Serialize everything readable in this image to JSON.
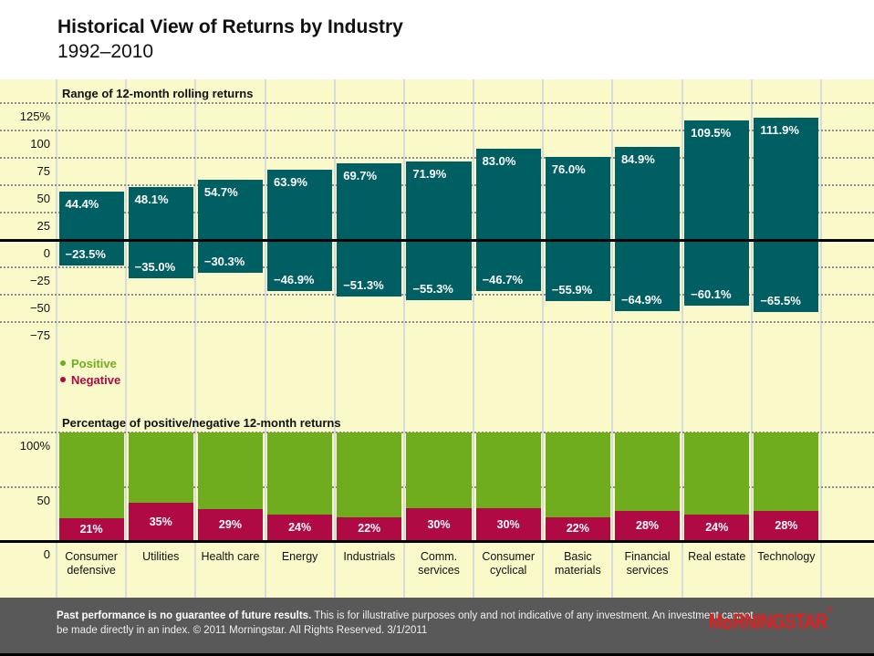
{
  "header": {
    "title": "Historical View of Returns by Industry",
    "subtitle": "1992–2010"
  },
  "legend": {
    "positive": "Positive",
    "negative": "Negative"
  },
  "chart_data": [
    {
      "type": "bar",
      "subtype": "floating-range",
      "title": "Range of 12-month rolling returns",
      "categories": [
        "Consumer defensive",
        "Utilities",
        "Health care",
        "Energy",
        "Industrials",
        "Comm. services",
        "Consumer cyclical",
        "Basic materials",
        "Financial services",
        "Real estate",
        "Technology"
      ],
      "series": [
        {
          "name": "high",
          "values": [
            44.4,
            48.1,
            54.7,
            63.9,
            69.7,
            71.9,
            83.0,
            76.0,
            84.9,
            109.5,
            111.9
          ],
          "labels": [
            "44.4%",
            "48.1%",
            "54.7%",
            "63.9%",
            "69.7%",
            "71.9%",
            "83.0%",
            "76.0%",
            "84.9%",
            "109.5%",
            "111.9%"
          ]
        },
        {
          "name": "low",
          "values": [
            -23.5,
            -35.0,
            -30.3,
            -46.9,
            -51.3,
            -55.3,
            -46.7,
            -55.9,
            -64.9,
            -60.1,
            -65.5
          ],
          "labels": [
            "−23.5%",
            "−35.0%",
            "−30.3%",
            "−46.9%",
            "−51.3%",
            "−55.3%",
            "−46.7%",
            "−55.9%",
            "−64.9%",
            "−60.1%",
            "−65.5%"
          ]
        }
      ],
      "ylim": [
        -75,
        125
      ],
      "yticks": [
        "125%",
        "100",
        "75",
        "50",
        "25",
        "0",
        "−25",
        "−50",
        "−75"
      ],
      "grid": "horizontal-dotted",
      "legend_position": "none"
    },
    {
      "type": "bar",
      "subtype": "stacked-100",
      "title": "Percentage of positive/negative 12-month returns",
      "categories": [
        "Consumer defensive",
        "Utilities",
        "Health care",
        "Energy",
        "Industrials",
        "Comm. services",
        "Consumer cyclical",
        "Basic materials",
        "Financial services",
        "Real estate",
        "Technology"
      ],
      "series": [
        {
          "name": "Positive",
          "values": [
            79,
            65,
            71,
            76,
            78,
            70,
            70,
            78,
            72,
            76,
            72
          ]
        },
        {
          "name": "Negative",
          "values": [
            21,
            35,
            29,
            24,
            22,
            30,
            30,
            22,
            28,
            24,
            28
          ],
          "labels": [
            "21%",
            "35%",
            "29%",
            "24%",
            "22%",
            "30%",
            "30%",
            "22%",
            "28%",
            "24%",
            "28%"
          ]
        }
      ],
      "ylim": [
        0,
        100
      ],
      "yticks": [
        "100%",
        "50",
        "0"
      ],
      "grid": "horizontal-dotted",
      "legend_position": "above-left"
    }
  ],
  "footer": {
    "bold": "Past performance is no guarantee of future results.",
    "line1": "This is for illustrative purposes only and not indicative of any investment. An investment cannot",
    "line2": "be made directly in an index. © 2011 Morningstar. All Rights Reserved. 3/1/2011",
    "logo_text_left": "M",
    "logo_text_right": "RNINGSTAR",
    "logo_reg": "®"
  },
  "colors": {
    "band_bg": "#F9F9C9",
    "teal": "#005F63",
    "green": "#70AD1E",
    "crimson": "#B00A45",
    "grid": "#8F8F8F",
    "separator": "#D6DBDB",
    "footer_bg": "#595959",
    "logo_red": "#E0201F"
  }
}
